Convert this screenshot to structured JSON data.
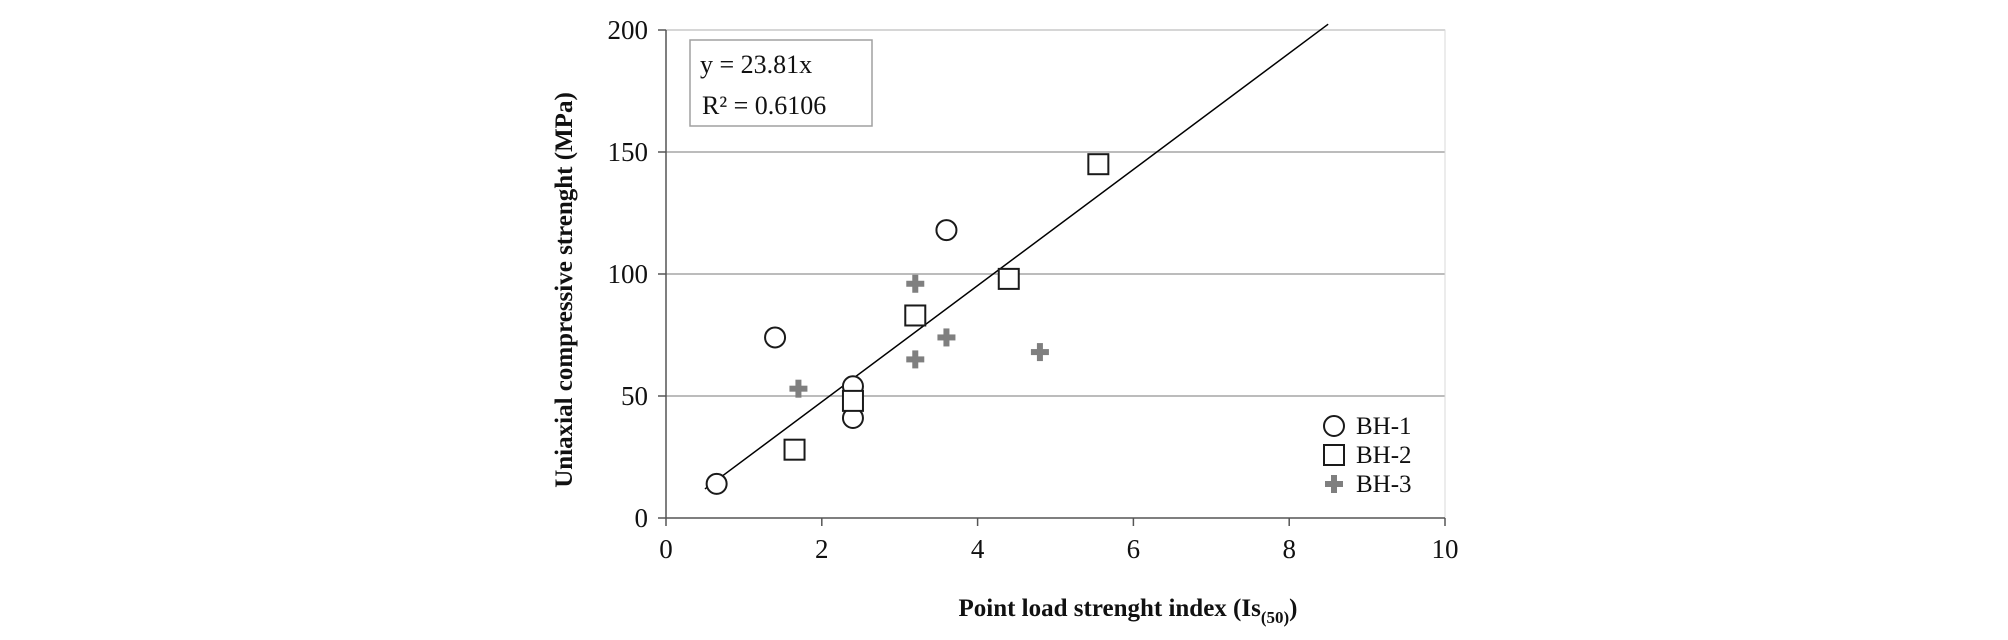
{
  "chart_data": {
    "type": "scatter",
    "title": "",
    "xlabel": "Point load strenght index (Is",
    "xlabel_sub": "(50)",
    "xlabel_end": ")",
    "ylabel": "Uniaxial compressive strenght (MPa)",
    "xlim": [
      0,
      10
    ],
    "ylim": [
      0,
      200
    ],
    "xticks": [
      0,
      2,
      4,
      6,
      8,
      10
    ],
    "yticks": [
      0,
      50,
      100,
      150,
      200
    ],
    "grid": "horizontal",
    "legend_position": "bottom-right",
    "trendline": {
      "equation": "y = 23.81x",
      "r2": "R² = 0.6106",
      "slope": 23.81,
      "x_range": [
        0.5,
        8.5
      ]
    },
    "series": [
      {
        "name": "BH-1",
        "marker": "circle",
        "color": "#1a1a1a",
        "points": [
          [
            0.65,
            14
          ],
          [
            1.4,
            74
          ],
          [
            2.4,
            54
          ],
          [
            2.4,
            41
          ],
          [
            3.6,
            118
          ]
        ]
      },
      {
        "name": "BH-2",
        "marker": "square",
        "color": "#1a1a1a",
        "points": [
          [
            1.65,
            28
          ],
          [
            2.4,
            48
          ],
          [
            3.2,
            83
          ],
          [
            4.4,
            98
          ],
          [
            5.55,
            145
          ]
        ]
      },
      {
        "name": "BH-3",
        "marker": "plus",
        "color": "#7f7f7f",
        "points": [
          [
            1.7,
            53
          ],
          [
            3.2,
            96
          ],
          [
            3.2,
            65
          ],
          [
            3.6,
            74
          ],
          [
            4.8,
            68
          ]
        ]
      }
    ]
  },
  "colors": {
    "grid": "#a6a6a6",
    "axis": "#555555",
    "text": "#111111"
  }
}
